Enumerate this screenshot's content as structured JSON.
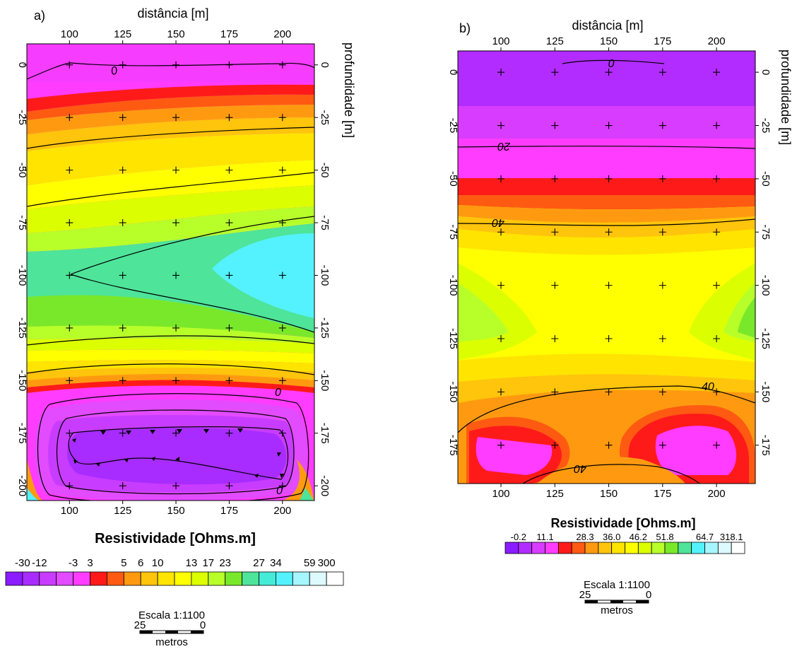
{
  "chart_data": [
    {
      "type": "heatmap",
      "panel_label": "a)",
      "xlabel": "distância [m]",
      "ylabel": "profundidade [m]",
      "xlim": [
        80,
        215
      ],
      "ylim": [
        -207,
        10
      ],
      "x_ticks": [
        100,
        125,
        150,
        175,
        200
      ],
      "x_tick_labels": [
        "100",
        "125",
        "150",
        "175",
        "200"
      ],
      "y_ticks": [
        0,
        -25,
        -50,
        -75,
        -100,
        -125,
        -150,
        -175,
        -200
      ],
      "y_tick_labels": [
        "0",
        "-25",
        "-50",
        "-75",
        "-100",
        "-125",
        "-150",
        "-175",
        "-200"
      ],
      "data_point_x": [
        100,
        125,
        150,
        175,
        200
      ],
      "data_point_depths": [
        0,
        -25,
        -50,
        -75,
        -100,
        -125,
        -150,
        -175,
        -200
      ],
      "contour_labels": [
        "0",
        "0",
        "0"
      ],
      "colorbar_title": "Resistividade [Ohms.m]",
      "colorbar_labels": [
        "-30",
        "-12",
        "-3",
        "3",
        "5",
        "6",
        "10",
        "13",
        "17",
        "23",
        "27",
        "34",
        "59",
        "300"
      ],
      "colorbar_colors": [
        "#8a1cff",
        "#a82cff",
        "#c83cff",
        "#e24bff",
        "#ff3cff",
        "#ff1a1a",
        "#ff5a12",
        "#ff9a10",
        "#ffc40c",
        "#ffe400",
        "#ffff00",
        "#dcff00",
        "#b8ff2a",
        "#7ae82a",
        "#4ee49a",
        "#44ecd8",
        "#54f2ff",
        "#a6f6ff",
        "#dcfaff",
        "#ffffff"
      ],
      "scale_text": "Escala 1:1100",
      "scale_left": "25",
      "scale_right": "0",
      "scale_unit": "metros"
    },
    {
      "type": "heatmap",
      "panel_label": "b)",
      "xlabel": "distância [m]",
      "ylabel": "profundidade [m]",
      "xlim": [
        80,
        218
      ],
      "ylim": [
        -193,
        10
      ],
      "x_ticks": [
        100,
        125,
        150,
        175,
        200
      ],
      "x_tick_labels": [
        "100",
        "125",
        "150",
        "175",
        "200"
      ],
      "y_ticks": [
        0,
        -25,
        -50,
        -75,
        -100,
        -125,
        -150,
        -175
      ],
      "y_tick_labels": [
        "0",
        "-25",
        "-50",
        "-75",
        "-100",
        "-125",
        "-150",
        "-175"
      ],
      "data_point_x": [
        100,
        125,
        150,
        175,
        200
      ],
      "data_point_depths": [
        0,
        -25,
        -50,
        -75,
        -100,
        -125,
        -150,
        -175
      ],
      "contour_labels": [
        "0",
        "20",
        "40",
        "40",
        "40"
      ],
      "colorbar_title": "Resistividade [Ohms.m]",
      "colorbar_labels": [
        "-0.2",
        "11.1",
        "28.3",
        "36.0",
        "46.2",
        "51.8",
        "64.7",
        "318.1"
      ],
      "colorbar_colors": [
        "#8a1cff",
        "#b22cff",
        "#d83cff",
        "#ff3cff",
        "#ff1a1a",
        "#ff5a12",
        "#ff9a10",
        "#ffc40c",
        "#ffe400",
        "#ffff00",
        "#dcff00",
        "#b8ff2a",
        "#7ae82a",
        "#4ee49a",
        "#54f2ff",
        "#a6f6ff",
        "#dcfaff",
        "#ffffff"
      ],
      "scale_text": "Escala 1:1100",
      "scale_left": "25",
      "scale_right": "0",
      "scale_unit": "metros"
    }
  ]
}
